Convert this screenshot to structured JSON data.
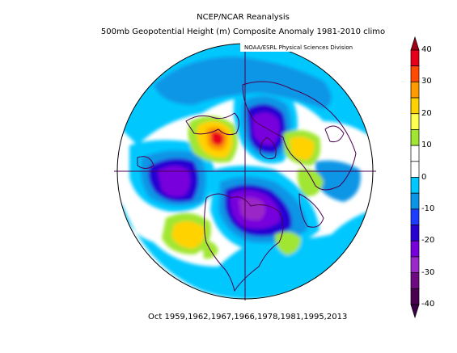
{
  "header": {
    "title_line1": "NCEP/NCAR Reanalysis",
    "title_line2": "500mb Geopotential Height (m) Composite Anomaly 1981-2010 climo",
    "credit": "NOAA/ESRL Physical Sciences Division"
  },
  "footer": {
    "dates": "Oct 1959,1962,1967,1966,1978,1981,1995,2013"
  },
  "colorbar": {
    "levels": [
      "40",
      "30",
      "20",
      "10",
      "0",
      "-10",
      "-20",
      "-30",
      "-40"
    ],
    "colors_top_to_bottom": [
      "#e8001a",
      "#ff4a00",
      "#ff9a00",
      "#ffd200",
      "#ffff50",
      "#a0e632",
      "#ffffff",
      "#ffffff",
      "#00c8ff",
      "#0a96e6",
      "#1e3cff",
      "#2800d2",
      "#7800dc",
      "#9b28c8",
      "#6e0a82",
      "#4b0050"
    ]
  },
  "map": {
    "projection": "north-polar-stereographic",
    "anomaly_regions": [
      {
        "name": "alaska-ridge",
        "value": 40
      },
      {
        "name": "canadian-trough",
        "value": -30
      },
      {
        "name": "siberia-trough",
        "value": -30
      },
      {
        "name": "pacific-trough",
        "value": -25
      },
      {
        "name": "europe-ridge",
        "value": 20
      },
      {
        "name": "east-pacific-ridge",
        "value": 20
      }
    ]
  }
}
